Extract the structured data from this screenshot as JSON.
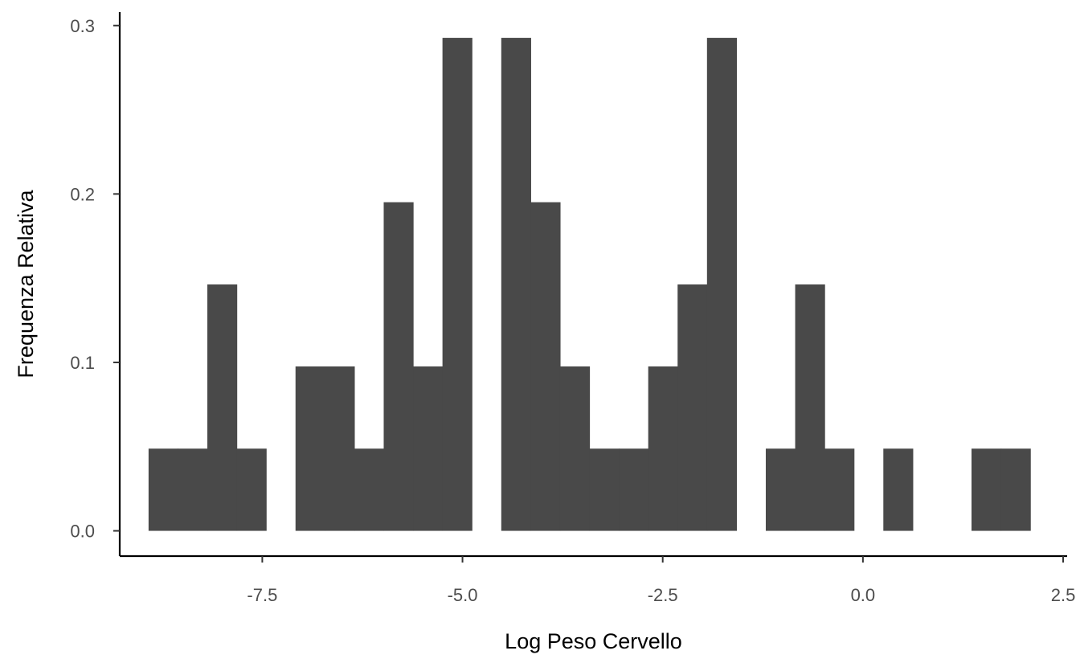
{
  "chart_data": {
    "type": "bar",
    "histogram": true,
    "xlabel": "Log Peso Cervello",
    "ylabel": "Frequenza Relativa",
    "xlim": [
      -9.28,
      2.55
    ],
    "ylim": [
      -0.015,
      0.308
    ],
    "x_ticks": [
      {
        "value": -7.5,
        "label": "-7.5"
      },
      {
        "value": -5.0,
        "label": "-5.0"
      },
      {
        "value": -2.5,
        "label": "-2.5"
      },
      {
        "value": 0.0,
        "label": "0.0"
      },
      {
        "value": 2.5,
        "label": "2.5"
      }
    ],
    "y_ticks": [
      {
        "value": 0.0,
        "label": "0.0"
      },
      {
        "value": 0.1,
        "label": "0.1"
      },
      {
        "value": 0.2,
        "label": "0.2"
      },
      {
        "value": 0.3,
        "label": "0.3"
      }
    ],
    "bin_start": -8.92,
    "bin_width": 0.367,
    "values": [
      0.0488,
      0.0488,
      0.1463,
      0.0488,
      0,
      0.0976,
      0.0976,
      0.0488,
      0.1951,
      0.0976,
      0.2927,
      0,
      0.2927,
      0.1951,
      0.0976,
      0.0488,
      0.0488,
      0.0976,
      0.1463,
      0.2927,
      0,
      0.0488,
      0.1463,
      0.0488,
      0,
      0.0488,
      0,
      0,
      0.0488,
      0.0488
    ],
    "bar_color": "#494949",
    "grid": false,
    "legend": "none"
  }
}
